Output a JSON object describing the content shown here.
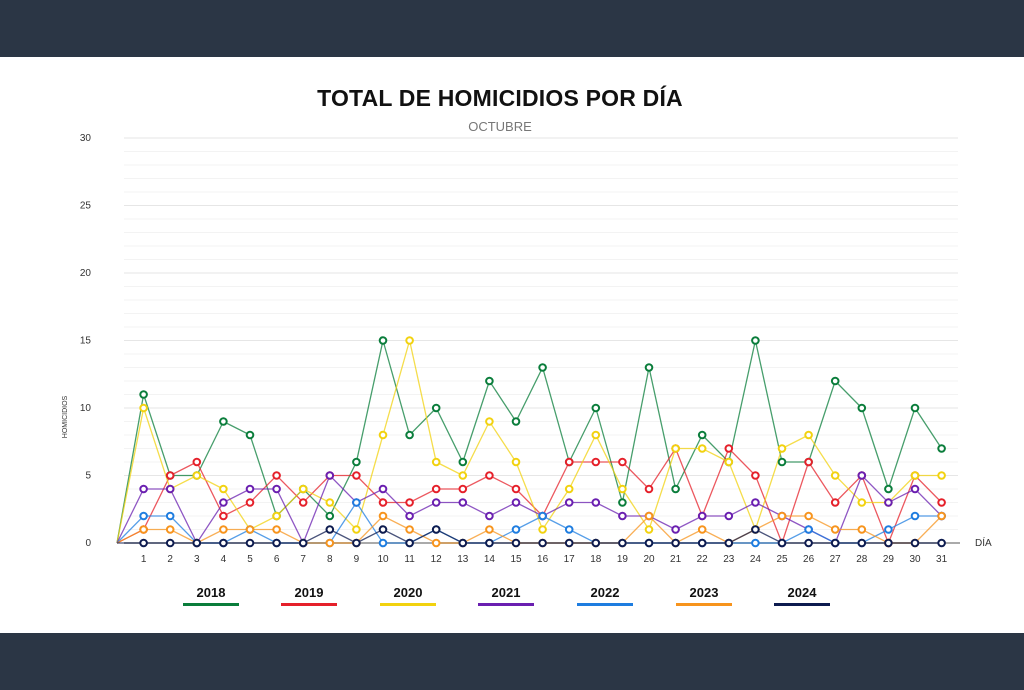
{
  "chart_data": {
    "type": "line",
    "title": "TOTAL DE HOMICIDIOS POR DÍA",
    "subtitle": "OCTUBRE",
    "xlabel": "DÍA",
    "ylabel": "HOMICIDIOS",
    "ylim": [
      0,
      30
    ],
    "yticks": [
      0,
      5,
      10,
      15,
      20,
      25,
      30
    ],
    "x": [
      1,
      2,
      3,
      4,
      5,
      6,
      7,
      8,
      9,
      10,
      11,
      12,
      13,
      14,
      15,
      16,
      17,
      18,
      19,
      20,
      21,
      22,
      23,
      24,
      25,
      26,
      27,
      28,
      29,
      30,
      31
    ],
    "grid": true,
    "legend_position": "bottom",
    "series": [
      {
        "name": "2018",
        "color": "#0a7d3b",
        "values": [
          11,
          5,
          5,
          9,
          8,
          2,
          4,
          2,
          6,
          15,
          8,
          10,
          6,
          12,
          9,
          13,
          6,
          10,
          3,
          13,
          4,
          8,
          6,
          15,
          6,
          6,
          12,
          10,
          4,
          10,
          7
        ]
      },
      {
        "name": "2019",
        "color": "#e5202a",
        "values": [
          1,
          5,
          6,
          2,
          3,
          5,
          3,
          5,
          5,
          3,
          3,
          4,
          4,
          5,
          4,
          2,
          6,
          6,
          6,
          4,
          7,
          2,
          7,
          5,
          0,
          6,
          3,
          5,
          0,
          5,
          3
        ]
      },
      {
        "name": "2020",
        "color": "#f2d20f",
        "values": [
          10,
          4,
          5,
          4,
          1,
          2,
          4,
          3,
          1,
          8,
          15,
          6,
          5,
          9,
          6,
          1,
          4,
          8,
          4,
          1,
          7,
          7,
          6,
          1,
          7,
          8,
          5,
          3,
          3,
          5,
          5
        ]
      },
      {
        "name": "2021",
        "color": "#6a1fb0",
        "values": [
          4,
          4,
          0,
          3,
          4,
          4,
          0,
          5,
          3,
          4,
          2,
          3,
          3,
          2,
          3,
          2,
          3,
          3,
          2,
          2,
          1,
          2,
          2,
          3,
          2,
          1,
          0,
          5,
          3,
          4,
          2
        ]
      },
      {
        "name": "2022",
        "color": "#1e7de0",
        "values": [
          2,
          2,
          0,
          0,
          1,
          0,
          0,
          0,
          3,
          0,
          0,
          1,
          0,
          0,
          1,
          2,
          1,
          0,
          0,
          0,
          0,
          0,
          0,
          0,
          0,
          1,
          0,
          0,
          1,
          2,
          2
        ]
      },
      {
        "name": "2023",
        "color": "#f7941d",
        "values": [
          1,
          1,
          0,
          1,
          1,
          1,
          0,
          0,
          0,
          2,
          1,
          0,
          0,
          1,
          0,
          0,
          0,
          0,
          0,
          2,
          0,
          1,
          0,
          1,
          2,
          2,
          1,
          1,
          0,
          0,
          2
        ]
      },
      {
        "name": "2024",
        "color": "#0d1b4f",
        "values": [
          0,
          0,
          0,
          0,
          0,
          0,
          0,
          1,
          0,
          1,
          0,
          1,
          0,
          0,
          0,
          0,
          0,
          0,
          0,
          0,
          0,
          0,
          0,
          1,
          0,
          0,
          0,
          0,
          0,
          0,
          0
        ]
      }
    ]
  }
}
